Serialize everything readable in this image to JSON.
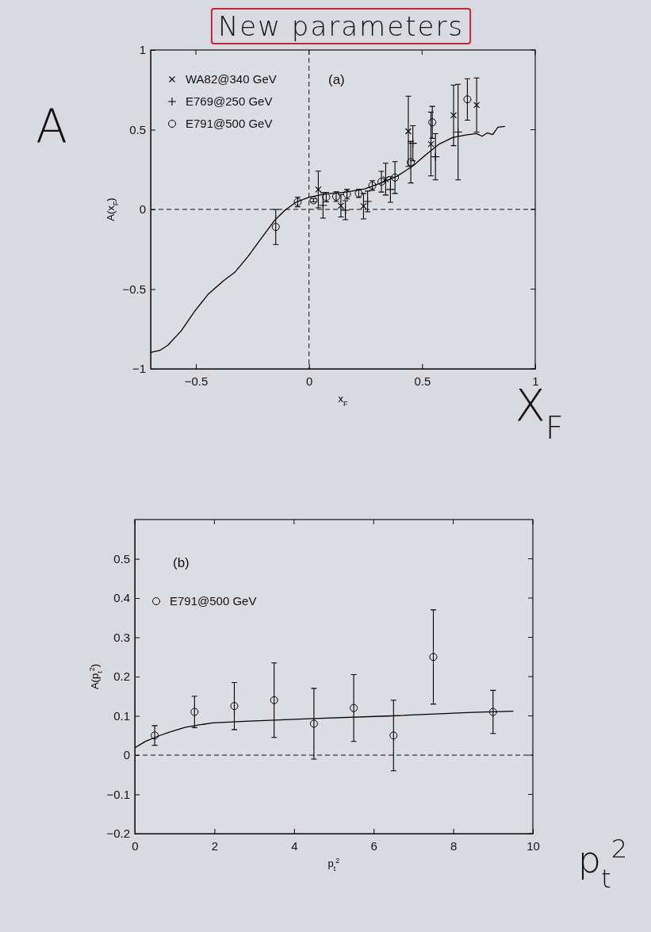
{
  "chart_data": [
    {
      "type": "scatter",
      "title": "New parameters",
      "xlabel": "x$_{F}$",
      "ylabel": "A(x$_{F}$)",
      "xlim": [
        -0.7,
        1
      ],
      "ylim": [
        -1,
        1
      ],
      "xticks": [
        -0.5,
        0,
        0.5,
        1
      ],
      "yticks": [
        -1,
        -0.5,
        0,
        0.5,
        1
      ],
      "legend": "top left",
      "annotations": [
        "(a)",
        "A",
        "X$_{F}$"
      ],
      "ref_lines": [
        {
          "axis": "x",
          "value": 0,
          "line_style": "dashed"
        },
        {
          "axis": "y",
          "value": 0,
          "line_style": "dashed"
        }
      ],
      "series": [
        {
          "name": "WA82@340 GeV",
          "color": "#000000",
          "marker": "x",
          "x": [
            0.041,
            0.141,
            0.241,
            0.339,
            0.439,
            0.539,
            0.639,
            0.741
          ],
          "values": [
            0.125,
            0.023,
            0.02,
            0.19,
            0.49,
            0.41,
            0.59,
            0.655
          ],
          "errors": [
            0.115,
            0.07,
            0.08,
            0.1,
            0.22,
            0.2,
            0.19,
            0.17
          ]
        },
        {
          "name": "E769@250 GeV",
          "color": "#000000",
          "marker": "cross",
          "x": [
            0.062,
            0.161,
            0.259,
            0.36,
            0.459,
            0.559,
            0.659
          ],
          "values": [
            0.025,
            -0.005,
            0.05,
            0.125,
            0.415,
            0.33,
            0.485
          ],
          "errors": [
            0.08,
            0.06,
            0.065,
            0.08,
            0.11,
            0.145,
            0.3
          ]
        },
        {
          "name": "E791@500 GeV",
          "color": "#000000",
          "marker": "circle",
          "x": [
            -0.147,
            -0.05,
            0.02,
            0.076,
            0.12,
            0.168,
            0.22,
            0.28,
            0.32,
            0.38,
            0.45,
            0.545,
            0.7
          ],
          "values": [
            -0.11,
            0.047,
            0.057,
            0.077,
            0.08,
            0.096,
            0.1,
            0.15,
            0.174,
            0.2,
            0.296,
            0.546,
            0.69
          ],
          "errors": [
            0.11,
            0.03,
            0.01,
            0.03,
            0.03,
            0.03,
            0.025,
            0.03,
            0.065,
            0.1,
            0.13,
            0.1,
            0.13
          ]
        },
        {
          "type": "line",
          "color": "#000000",
          "x": [
            -0.7,
            -0.659,
            -0.624,
            -0.565,
            -0.506,
            -0.447,
            -0.376,
            -0.329,
            -0.271,
            -0.212,
            -0.153,
            -0.106,
            -0.059,
            0,
            0.071,
            0.165,
            0.247,
            0.318,
            0.388,
            0.459,
            0.518,
            0.576,
            0.635,
            0.694,
            0.741,
            0.765,
            0.788,
            0.812,
            0.835,
            0.865
          ],
          "values": [
            -0.897,
            -0.884,
            -0.852,
            -0.762,
            -0.64,
            -0.534,
            -0.445,
            -0.396,
            -0.298,
            -0.184,
            -0.07,
            -0.005,
            0.044,
            0.077,
            0.096,
            0.109,
            0.129,
            0.166,
            0.207,
            0.272,
            0.345,
            0.41,
            0.451,
            0.467,
            0.476,
            0.459,
            0.48,
            0.47,
            0.516,
            0.521
          ]
        }
      ]
    },
    {
      "type": "scatter",
      "xlabel": "p$_{t}$$^{2}$",
      "ylabel": "A(p$_{t}$$^{2}$)",
      "xlim": [
        0,
        10
      ],
      "ylim": [
        -0.2,
        0.6
      ],
      "xticks": [
        0,
        2,
        4,
        6,
        8,
        10
      ],
      "yticks": [
        -0.2,
        -0.1,
        0,
        0.1,
        0.2,
        0.3,
        0.4,
        0.5
      ],
      "legend": "top left",
      "annotations": [
        "(b)",
        "p$_{t}$$^{2}$"
      ],
      "ref_lines": [
        {
          "axis": "y",
          "value": 0,
          "line_style": "dashed"
        }
      ],
      "series": [
        {
          "name": "E791@500 GeV",
          "color": "#000000",
          "marker": "circle",
          "x": [
            0.5,
            1.5,
            2.5,
            3.5,
            4.5,
            5.5,
            6.5,
            7.5,
            9
          ],
          "values": [
            0.05,
            0.11,
            0.125,
            0.14,
            0.08,
            0.12,
            0.05,
            0.25,
            0.11
          ],
          "errors": [
            0.025,
            0.04,
            0.06,
            0.095,
            0.09,
            0.085,
            0.09,
            0.12,
            0.055
          ]
        },
        {
          "type": "line",
          "color": "#000000",
          "x": [
            0.02,
            0.27,
            0.63,
            0.91,
            1.27,
            1.62,
            1.95,
            2.77,
            4.5,
            6.48,
            8.47,
            9.5
          ],
          "values": [
            0.02,
            0.035,
            0.05,
            0.06,
            0.071,
            0.077,
            0.082,
            0.086,
            0.093,
            0.1,
            0.109,
            0.112
          ]
        }
      ]
    }
  ]
}
